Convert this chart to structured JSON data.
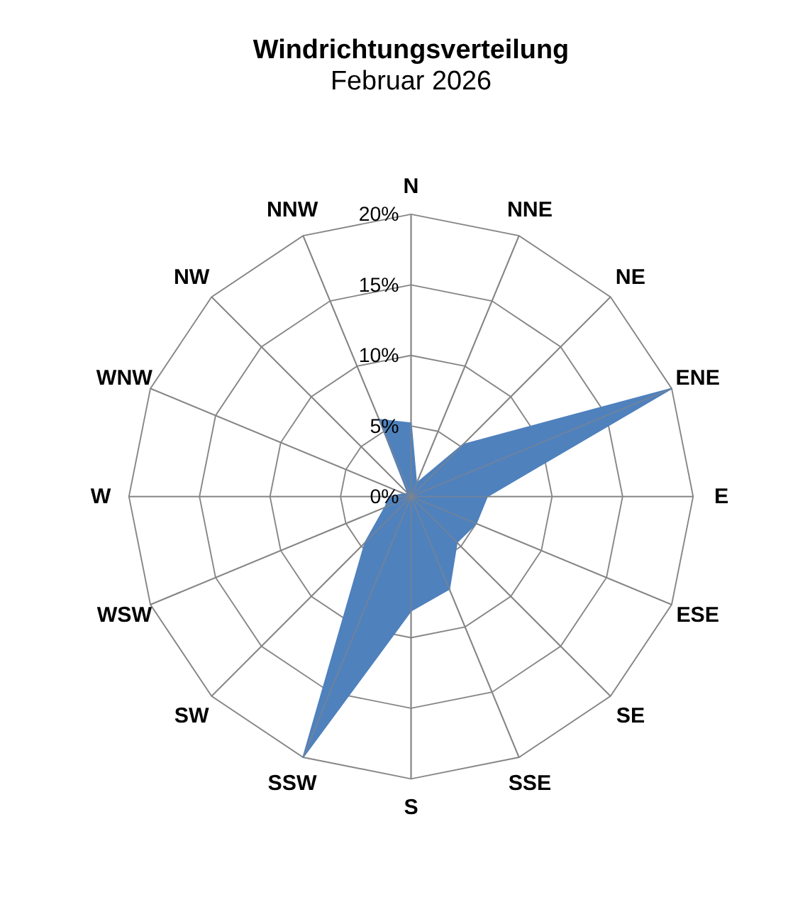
{
  "chart_data": {
    "type": "radar",
    "title": "Windrichtungsverteilung",
    "subtitle": "Februar 2026",
    "categories": [
      "N",
      "NNE",
      "NE",
      "ENE",
      "E",
      "ESE",
      "SE",
      "SSE",
      "S",
      "SSW",
      "SW",
      "WSW",
      "W",
      "WNW",
      "NW",
      "NNW"
    ],
    "series": [
      {
        "color": "#4f81bd",
        "values": [
          5.2,
          1.0,
          5.2,
          20,
          5.4,
          5.0,
          4.6,
          7.1,
          8.1,
          20,
          4.6,
          2.0,
          1.5,
          0.5,
          0.3,
          5.9
        ]
      }
    ],
    "ylim": [
      0,
      20
    ],
    "yticks": [
      {
        "value": 0,
        "label": "0%"
      },
      {
        "value": 5,
        "label": "5%"
      },
      {
        "value": 10,
        "label": "10%"
      },
      {
        "value": 15,
        "label": "15%"
      },
      {
        "value": 20,
        "label": "20%"
      }
    ],
    "grid": true
  }
}
